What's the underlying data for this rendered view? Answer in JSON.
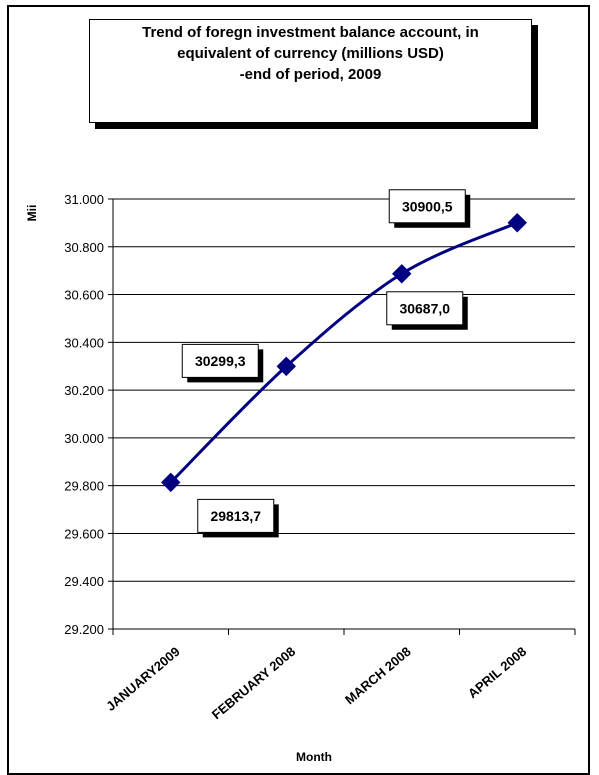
{
  "chart_data": {
    "type": "line",
    "title_lines": [
      "Trend of foregn investment balance account, in",
      "equivalent of currency (millions USD)",
      "-end of period, 2009"
    ],
    "xlabel": "Month",
    "ylabel": "Mii",
    "categories": [
      "JANUARY2009",
      "FEBRUARY 2008",
      "MARCH 2008",
      "APRIL 2008"
    ],
    "values": [
      29813.7,
      30299.3,
      30687.0,
      30900.5
    ],
    "data_labels": [
      "29813,7",
      "30299,3",
      "30687,0",
      "30900,5"
    ],
    "ylim": [
      29200,
      31000
    ],
    "yticks": [
      29200,
      29400,
      29600,
      29800,
      30000,
      30200,
      30400,
      30600,
      30800,
      31000
    ],
    "ytick_labels": [
      "29.200",
      "29.400",
      "29.600",
      "29.800",
      "30.000",
      "30.200",
      "30.400",
      "30.600",
      "30.800",
      "31.000"
    ],
    "grid": true,
    "line_color": "#000080",
    "marker_color": "#000080"
  }
}
